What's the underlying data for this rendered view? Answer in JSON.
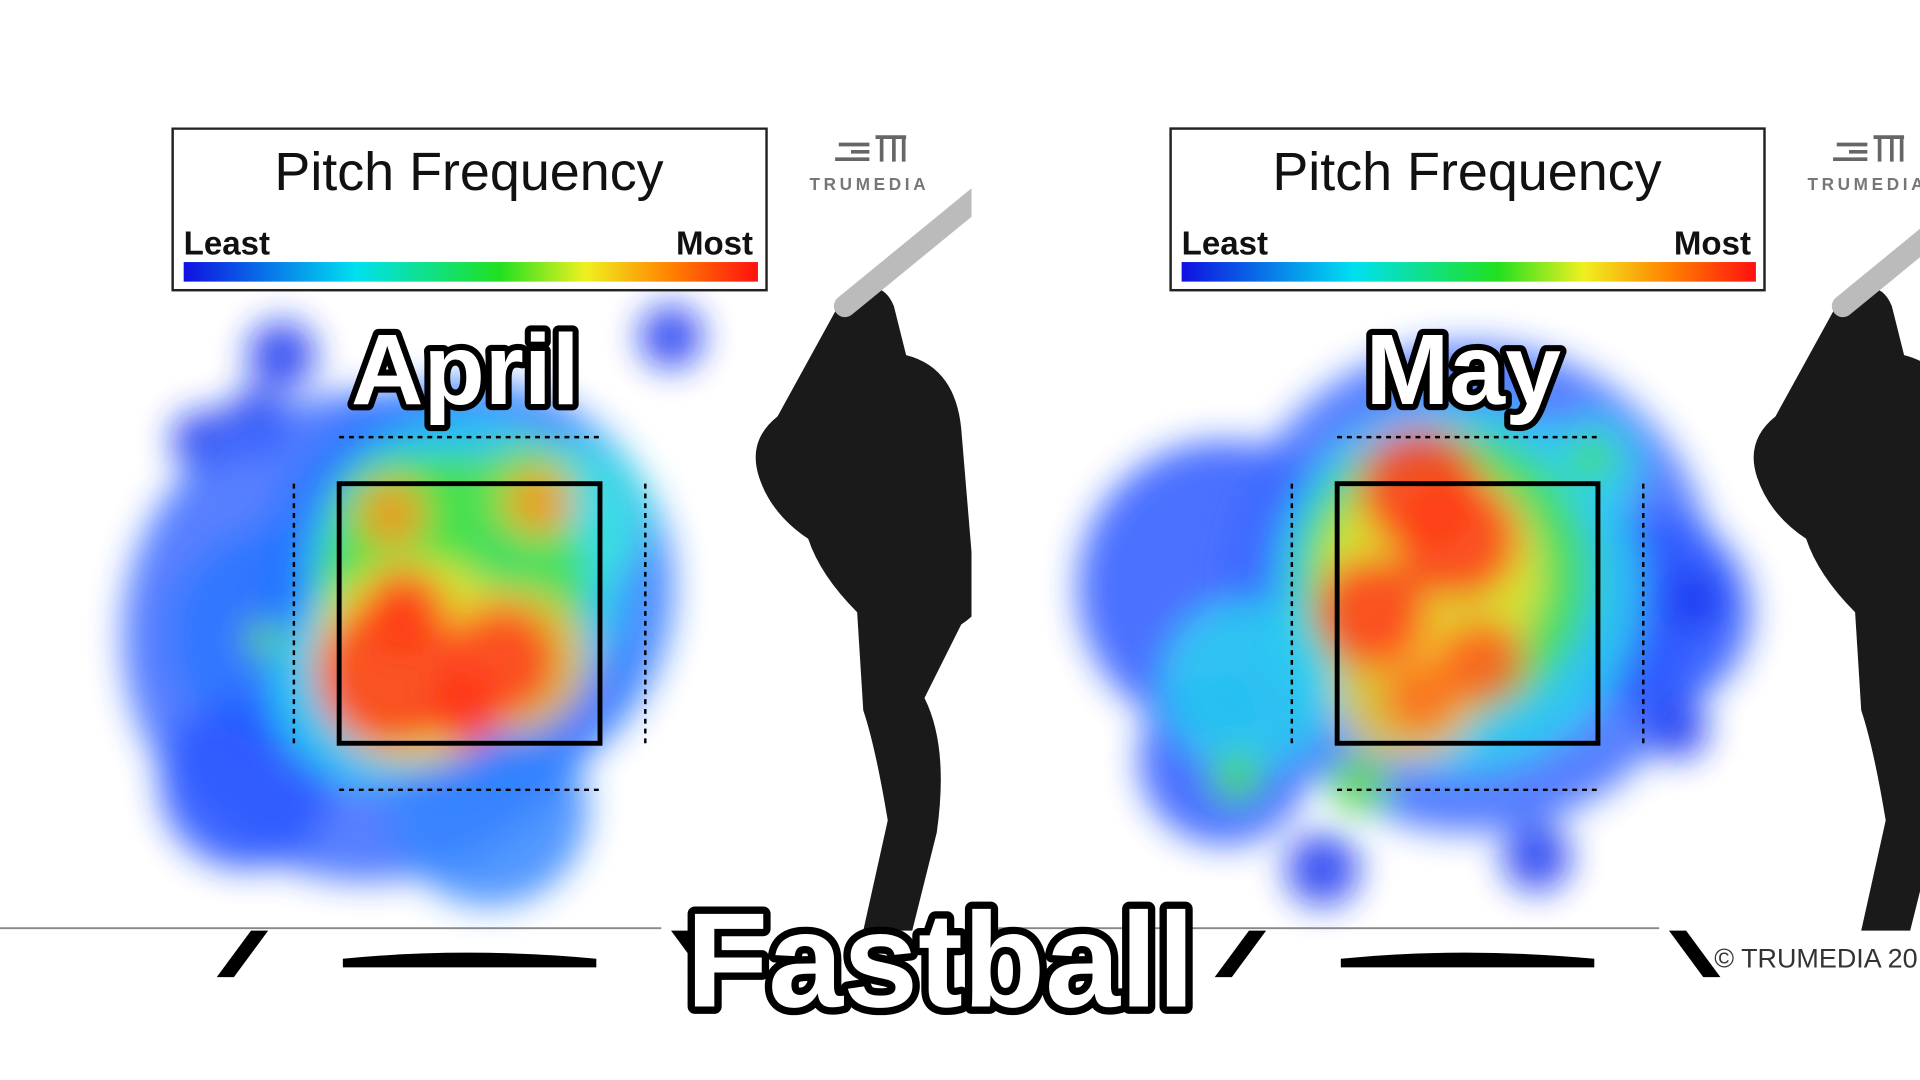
{
  "title": "Fastball",
  "panels": [
    {
      "legend": {
        "title": "Pitch Frequency",
        "least": "Least",
        "most": "Most"
      },
      "logo": "TRUMEDIA",
      "label": "April"
    },
    {
      "legend": {
        "title": "Pitch Frequency",
        "least": "Least",
        "most": "Most"
      },
      "logo": "TRUMEDIA",
      "label": "May",
      "copyright": "© TRUMEDIA 20"
    }
  ]
}
